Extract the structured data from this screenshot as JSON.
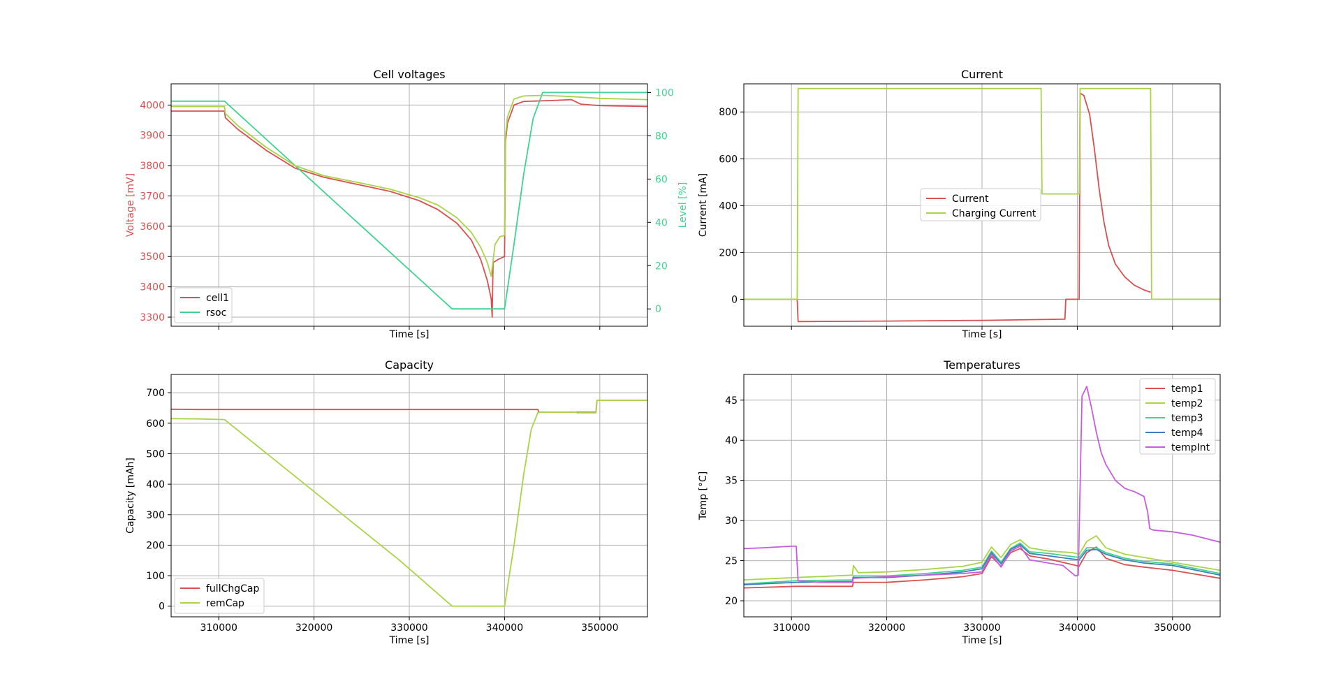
{
  "colors": {
    "red": "#d95050",
    "lime": "#a8d445",
    "teal": "#3fd38f",
    "blue": "#3b7fc0",
    "magenta": "#c85ce0",
    "grid": "#b0b0b0",
    "axis": "#000000"
  },
  "chart_data": [
    {
      "type": "line",
      "title": "Cell voltages",
      "xlabel": "Time [s]",
      "ylabel": "Voltage [mV]",
      "y2label": "Level [%]",
      "xlim": [
        305000,
        355000
      ],
      "ylim": [
        3270,
        4070
      ],
      "y2lim": [
        -8,
        104
      ],
      "xticks": [
        310000,
        320000,
        330000,
        340000,
        350000
      ],
      "show_xticklabels": false,
      "yticks": [
        3300,
        3400,
        3500,
        3600,
        3700,
        3800,
        3900,
        4000
      ],
      "y2ticks": [
        0,
        20,
        40,
        60,
        80,
        100
      ],
      "grid": true,
      "legend": {
        "placement": "lower-left",
        "entries": [
          "cell1",
          "rsoc"
        ]
      },
      "series": [
        {
          "name": "cell1",
          "axis": "left",
          "color": "#d95050",
          "x": [
            305000,
            310600,
            310700,
            312000,
            315000,
            318000,
            321000,
            325000,
            328000,
            331000,
            333000,
            335000,
            336500,
            337500,
            338200,
            338600,
            338700,
            338800,
            339300,
            340000,
            340100,
            340300,
            341000,
            342000,
            345000,
            347000,
            348000,
            350000,
            355000
          ],
          "y": [
            3980,
            3980,
            3958,
            3920,
            3850,
            3792,
            3762,
            3735,
            3715,
            3685,
            3655,
            3610,
            3555,
            3490,
            3420,
            3360,
            3300,
            3480,
            3490,
            3500,
            3880,
            3940,
            4000,
            4012,
            4015,
            4018,
            4003,
            3998,
            3995
          ]
        },
        {
          "name": "rsoc",
          "axis": "right",
          "color": "#3fd38f",
          "x": [
            305000,
            310600,
            334500,
            339000,
            340000,
            341000,
            342000,
            343000,
            344000,
            355000
          ],
          "y": [
            96,
            96,
            0,
            0,
            0,
            30,
            62,
            88,
            100,
            100
          ]
        },
        {
          "name": "",
          "axis": "left",
          "color": "#a8d445",
          "x": [
            305000,
            310600,
            310700,
            312000,
            315000,
            318000,
            321000,
            325000,
            328000,
            331000,
            333000,
            335000,
            336500,
            337500,
            338200,
            338600,
            339000,
            339500,
            340000,
            340100,
            340300,
            341000,
            342000,
            344000,
            347000,
            350000,
            355000
          ],
          "y": [
            3995,
            3995,
            3972,
            3932,
            3860,
            3800,
            3767,
            3742,
            3722,
            3695,
            3670,
            3628,
            3580,
            3530,
            3480,
            3435,
            3540,
            3565,
            3570,
            3900,
            3960,
            4020,
            4030,
            4032,
            4028,
            4022,
            4018
          ]
        }
      ]
    },
    {
      "type": "line",
      "title": "Current",
      "xlabel": "Time [s]",
      "ylabel": "Current [mA]",
      "xlim": [
        305000,
        355000
      ],
      "ylim": [
        -115,
        920
      ],
      "xticks": [
        310000,
        320000,
        330000,
        340000,
        350000
      ],
      "show_xticklabels": false,
      "yticks": [
        0,
        200,
        400,
        600,
        800
      ],
      "grid": true,
      "legend": {
        "placement": "center",
        "entries": [
          "Current",
          "Charging Current"
        ]
      },
      "series": [
        {
          "name": "Current",
          "color": "#d95050",
          "x": [
            305000,
            310600,
            310700,
            320000,
            330000,
            338700,
            338800,
            340200,
            340300,
            340700,
            341300,
            341800,
            342300,
            342800,
            343300,
            344000,
            345000,
            346000,
            347000,
            347700
          ],
          "y": [
            0,
            0,
            -95,
            -93,
            -90,
            -85,
            0,
            0,
            880,
            870,
            790,
            640,
            470,
            330,
            230,
            150,
            95,
            60,
            40,
            30
          ]
        },
        {
          "name": "Charging Current",
          "color": "#a8d445",
          "x": [
            305000,
            310600,
            310700,
            336200,
            336300,
            340200,
            340300,
            347700,
            347800,
            355000
          ],
          "y": [
            0,
            0,
            900,
            900,
            450,
            450,
            900,
            900,
            0,
            0
          ]
        }
      ]
    },
    {
      "type": "line",
      "title": "Capacity",
      "xlabel": "Time [s]",
      "ylabel": "Capacity [mAh]",
      "xlim": [
        305000,
        355000
      ],
      "ylim": [
        -35,
        760
      ],
      "xticks": [
        310000,
        320000,
        330000,
        340000,
        350000
      ],
      "xticklabels": [
        "310000",
        "320000",
        "330000",
        "340000",
        "350000"
      ],
      "yticks": [
        0,
        100,
        200,
        300,
        400,
        500,
        600,
        700
      ],
      "grid": true,
      "legend": {
        "placement": "lower-left",
        "entries": [
          "fullChgCap",
          "remCap"
        ]
      },
      "series": [
        {
          "name": "fullChgCap",
          "color": "#d95050",
          "x": [
            305000,
            307500,
            343500,
            343600,
            347500,
            349600,
            349700,
            355000
          ],
          "y": [
            646,
            645,
            645,
            636,
            636,
            636,
            675,
            675
          ]
        },
        {
          "name": "remCap",
          "color": "#a8d445",
          "x": [
            305000,
            308000,
            310600,
            329000,
            334500,
            340000,
            341000,
            342000,
            342800,
            343500,
            344000,
            347500,
            347600,
            349600,
            349700,
            355000
          ],
          "y": [
            615,
            614,
            612,
            150,
            0,
            0,
            200,
            430,
            580,
            635,
            636,
            636,
            634,
            634,
            675,
            675
          ]
        }
      ]
    },
    {
      "type": "line",
      "title": "Temperatures",
      "xlabel": "Time [s]",
      "ylabel": "Temp [°C]",
      "xlim": [
        305000,
        355000
      ],
      "ylim": [
        18,
        48.2
      ],
      "xticks": [
        310000,
        320000,
        330000,
        340000,
        350000
      ],
      "xticklabels": [
        "310000",
        "320000",
        "330000",
        "340000",
        "350000"
      ],
      "yticks": [
        20,
        25,
        30,
        35,
        40,
        45
      ],
      "grid": true,
      "legend": {
        "placement": "upper-right",
        "entries": [
          "temp1",
          "temp2",
          "temp3",
          "temp4",
          "tempInt"
        ]
      },
      "series": [
        {
          "name": "temp1",
          "color": "#d95050",
          "x": [
            305000,
            310500,
            316400,
            316500,
            320000,
            324000,
            328000,
            330000,
            331000,
            332000,
            333000,
            334000,
            335000,
            337000,
            339500,
            340200,
            341000,
            342000,
            343000,
            345000,
            347000,
            350000,
            355000
          ],
          "y": [
            21.6,
            21.8,
            21.8,
            22.3,
            22.3,
            22.6,
            23.0,
            23.4,
            25.5,
            24.3,
            26.0,
            26.5,
            25.6,
            25.2,
            24.5,
            24.3,
            26.0,
            26.7,
            25.3,
            24.5,
            24.2,
            23.8,
            22.8
          ]
        },
        {
          "name": "temp2",
          "color": "#a8d445",
          "x": [
            305000,
            310500,
            316400,
            316500,
            317000,
            320000,
            324000,
            328000,
            330000,
            331000,
            332000,
            333000,
            334000,
            335000,
            337000,
            339500,
            340200,
            341000,
            342000,
            343000,
            345000,
            347000,
            350000,
            355000
          ],
          "y": [
            22.6,
            22.9,
            23.2,
            24.4,
            23.5,
            23.6,
            23.9,
            24.3,
            24.8,
            26.7,
            25.4,
            27.0,
            27.6,
            26.6,
            26.2,
            26.0,
            25.8,
            27.4,
            28.1,
            26.6,
            25.8,
            25.4,
            24.8,
            23.8
          ]
        },
        {
          "name": "temp3",
          "color": "#3fd38f",
          "x": [
            305000,
            310500,
            316400,
            316500,
            320000,
            324000,
            328000,
            330000,
            331000,
            332000,
            333000,
            334000,
            335000,
            337000,
            339500,
            340200,
            341000,
            342000,
            343000,
            345000,
            347000,
            350000,
            355000
          ],
          "y": [
            22.1,
            22.5,
            22.6,
            23.1,
            23.1,
            23.4,
            23.8,
            24.2,
            26.2,
            24.8,
            26.5,
            27.2,
            26.1,
            25.9,
            25.5,
            25.4,
            26.6,
            26.6,
            26.0,
            25.3,
            24.9,
            24.6,
            23.4
          ]
        },
        {
          "name": "temp4",
          "color": "#3b7fc0",
          "x": [
            305000,
            310500,
            316400,
            316500,
            320000,
            324000,
            328000,
            330000,
            331000,
            332000,
            333000,
            334000,
            335000,
            337000,
            339500,
            340200,
            341000,
            342000,
            343000,
            345000,
            347000,
            350000,
            355000
          ],
          "y": [
            22.0,
            22.3,
            22.4,
            22.9,
            22.9,
            23.2,
            23.6,
            24.0,
            26.0,
            24.6,
            26.4,
            27.0,
            25.9,
            25.6,
            25.2,
            25.1,
            26.3,
            26.4,
            25.8,
            25.1,
            24.7,
            24.4,
            23.2
          ]
        },
        {
          "name": "tempInt",
          "color": "#c85ce0",
          "x": [
            305000,
            307000,
            310000,
            310500,
            310700,
            313000,
            316400,
            316500,
            320000,
            324000,
            328000,
            330000,
            331000,
            332000,
            333000,
            334000,
            335000,
            337000,
            338500,
            339800,
            340100,
            340500,
            341000,
            341500,
            342000,
            342500,
            343000,
            343500,
            344000,
            345000,
            346000,
            347000,
            347400,
            347600,
            348000,
            350000,
            352000,
            355000
          ],
          "y": [
            26.5,
            26.6,
            26.8,
            26.8,
            22.5,
            22.3,
            22.3,
            22.8,
            23.0,
            23.2,
            23.4,
            23.6,
            25.8,
            24.2,
            26.2,
            26.8,
            25.1,
            24.7,
            24.4,
            23.1,
            23.2,
            45.5,
            46.7,
            44.0,
            41.0,
            38.5,
            37.0,
            36.0,
            35.0,
            34.0,
            33.6,
            33.0,
            31.0,
            29.0,
            28.8,
            28.6,
            28.2,
            27.3
          ]
        }
      ]
    }
  ]
}
